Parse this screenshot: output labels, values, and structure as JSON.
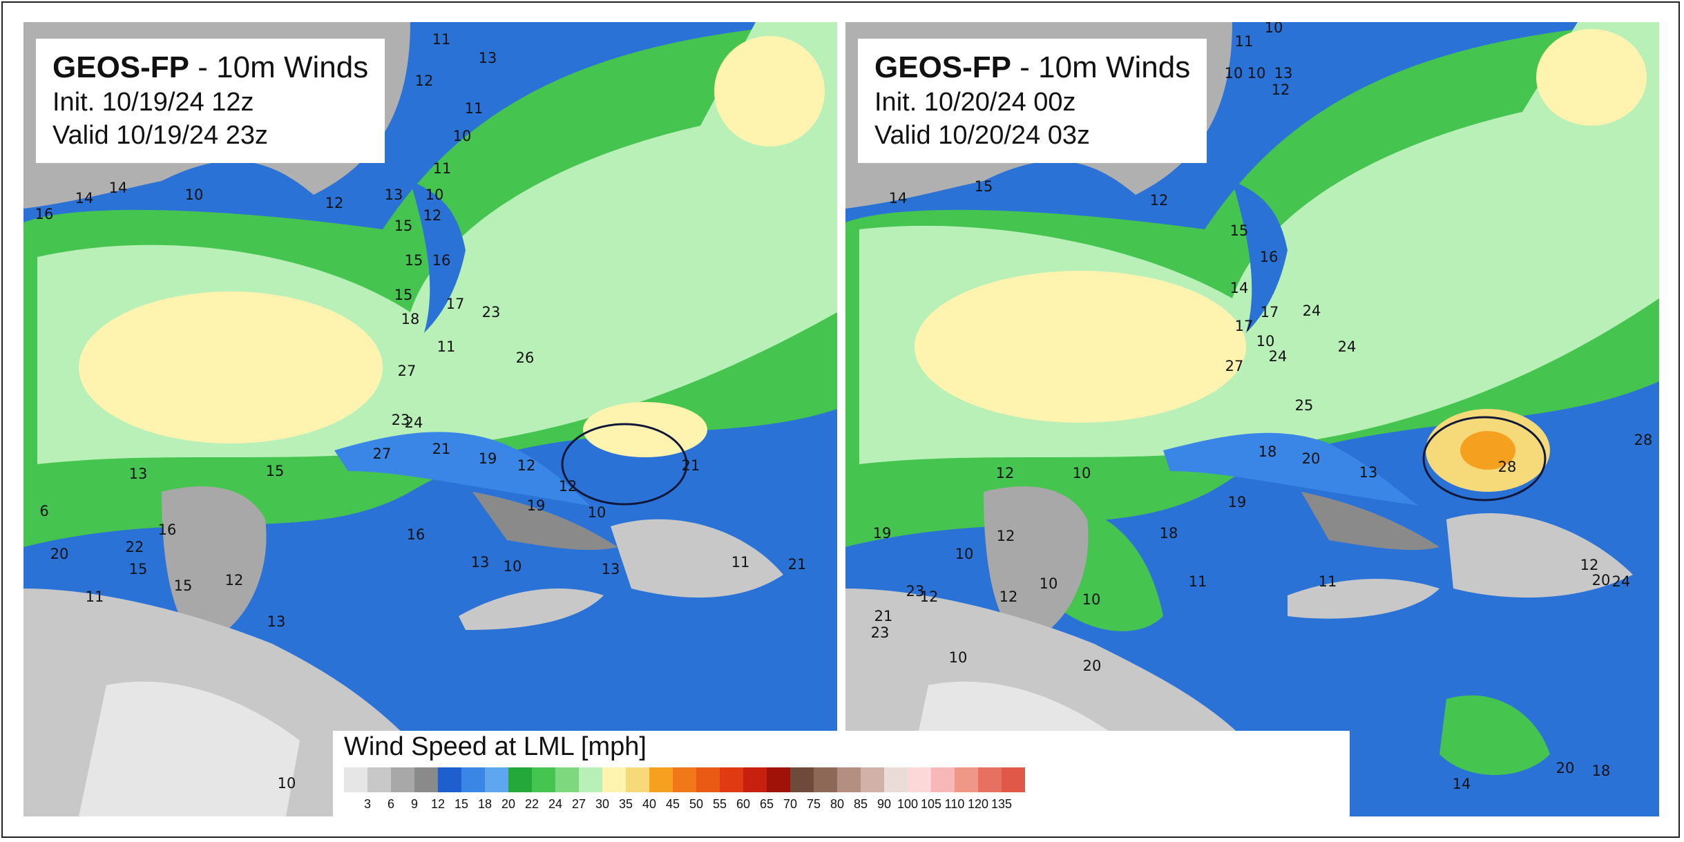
{
  "panels": [
    {
      "title_bold": "GEOS-FP",
      "title_rest": " - 10m Winds",
      "init": "Init. 10/19/24 12z",
      "valid": "Valid 10/19/24 23z",
      "station_values": [
        "12",
        "11",
        "13",
        "11",
        "10",
        "11",
        "10",
        "13",
        "14",
        "16",
        "14",
        "10",
        "12",
        "12",
        "15",
        "15",
        "16",
        "15",
        "17",
        "18",
        "11",
        "23",
        "26",
        "27",
        "23",
        "24",
        "27",
        "21",
        "19",
        "12",
        "12",
        "10",
        "19",
        "21",
        "16",
        "13",
        "15",
        "13",
        "16",
        "22",
        "20",
        "15",
        "15",
        "12",
        "11",
        "13",
        "10",
        "10",
        "13",
        "11",
        "21",
        "6",
        "10",
        "12"
      ]
    },
    {
      "title_bold": "GEOS-FP",
      "title_rest": " - 10m Winds",
      "init": "Init. 10/20/24 00z",
      "valid": "Valid 10/20/24 03z",
      "station_values": [
        "10",
        "11",
        "10",
        "10",
        "13",
        "12",
        "12",
        "14",
        "15",
        "15",
        "16",
        "14",
        "17",
        "17",
        "24",
        "10",
        "24",
        "27",
        "24",
        "25",
        "28",
        "18",
        "20",
        "13",
        "28",
        "12",
        "10",
        "19",
        "10",
        "12",
        "10",
        "19",
        "18",
        "11",
        "11",
        "12",
        "20",
        "24",
        "23",
        "21",
        "12",
        "12",
        "10",
        "20",
        "23",
        "10",
        "20",
        "18",
        "14"
      ]
    }
  ],
  "legend": {
    "title": "Wind Speed at LML [mph]",
    "ticks": [
      "3",
      "6",
      "9",
      "12",
      "15",
      "18",
      "20",
      "22",
      "24",
      "27",
      "30",
      "35",
      "40",
      "45",
      "50",
      "55",
      "60",
      "65",
      "70",
      "75",
      "80",
      "85",
      "90",
      "100",
      "105",
      "110",
      "120",
      "135"
    ],
    "colors": [
      "#e6e6e6",
      "#c8c8c8",
      "#a8a8a8",
      "#8a8a8a",
      "#1e5fd0",
      "#3a86e6",
      "#5fa6f0",
      "#25a83a",
      "#46c450",
      "#7ed87e",
      "#b8f0b8",
      "#fff3b0",
      "#f6da7a",
      "#f6a020",
      "#f07818",
      "#ea5a14",
      "#e03a12",
      "#c8200e",
      "#a01208",
      "#6e4a3c",
      "#8e6856",
      "#b48e80",
      "#d2b2a8",
      "#ecdcd8",
      "#fcd8d8",
      "#f8b8b8",
      "#f09888",
      "#e87060",
      "#e05848"
    ]
  }
}
